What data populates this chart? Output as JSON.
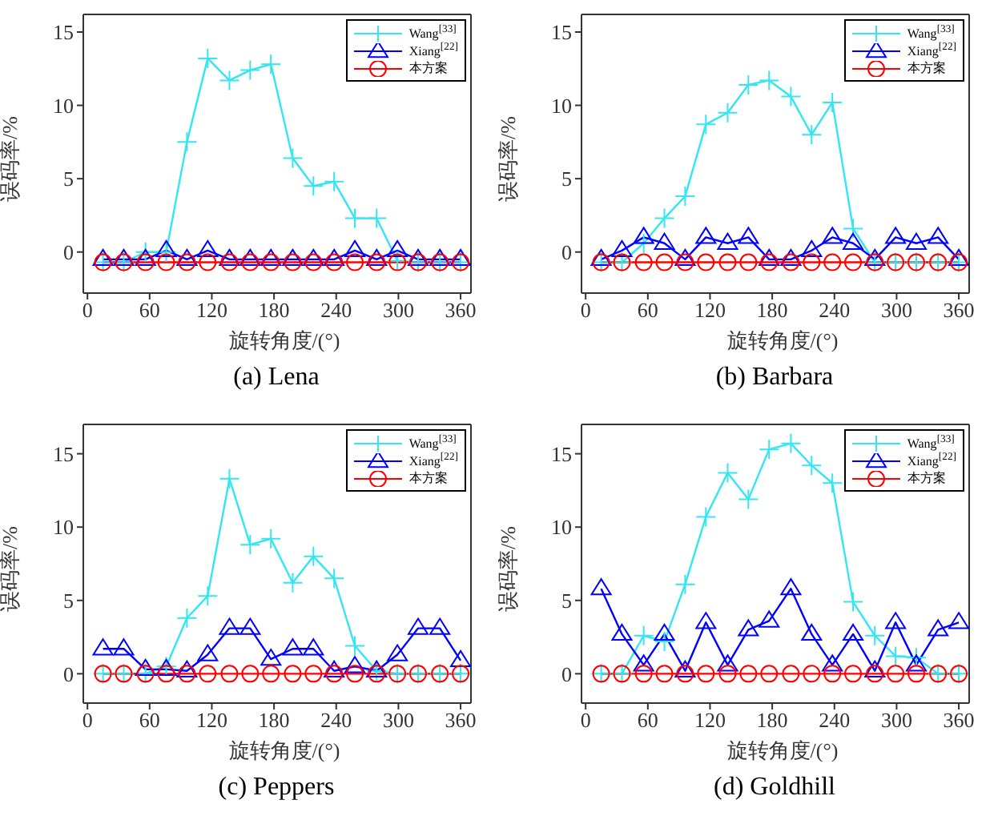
{
  "chart_data": [
    {
      "type": "line",
      "title": "(a) Lena",
      "xlabel": "旋转角度/(°)",
      "ylabel": "误码率/%",
      "x": [
        15,
        35,
        56,
        76,
        96,
        116,
        137,
        157,
        177,
        198,
        218,
        238,
        258,
        279,
        299,
        319,
        340,
        360
      ],
      "xlim": [
        -4,
        370
      ],
      "xticks": [
        0,
        60,
        120,
        180,
        240,
        300,
        360
      ],
      "ylim": [
        -2.8,
        16.2
      ],
      "yticks": [
        0,
        5,
        10,
        15
      ],
      "legend": "top right",
      "series": [
        {
          "name": "Wang$^{[33]}$",
          "color": "#33e6f0",
          "marker": "cross",
          "values": [
            -0.7,
            -0.7,
            0,
            0,
            7.5,
            13.2,
            11.7,
            12.4,
            12.8,
            6.4,
            4.5,
            4.8,
            2.3,
            2.3,
            -0.6,
            -0.7,
            -0.7,
            -0.7
          ]
        },
        {
          "name": "Xiang$^{[22]}$",
          "color": "#0000ff",
          "marker": "triangle",
          "values": [
            -0.5,
            -0.5,
            -0.5,
            0.1,
            -0.5,
            0.1,
            -0.5,
            -0.5,
            -0.5,
            -0.5,
            -0.5,
            -0.5,
            0.1,
            -0.5,
            0.1,
            -0.5,
            -0.5,
            -0.5
          ]
        },
        {
          "name": "本方案",
          "color": "#ff0000",
          "marker": "circle",
          "values": [
            -0.7,
            -0.7,
            -0.7,
            -0.7,
            -0.7,
            -0.7,
            -0.7,
            -0.7,
            -0.7,
            -0.7,
            -0.7,
            -0.7,
            -0.7,
            -0.7,
            -0.7,
            -0.7,
            -0.7,
            -0.7
          ]
        }
      ]
    },
    {
      "type": "line",
      "title": "(b) Barbara",
      "xlabel": "旋转角度/(°)",
      "ylabel": "误码率/%",
      "x": [
        15,
        35,
        56,
        76,
        96,
        116,
        137,
        157,
        177,
        198,
        218,
        238,
        258,
        279,
        299,
        319,
        340,
        360
      ],
      "xlim": [
        -4,
        370
      ],
      "xticks": [
        0,
        60,
        120,
        180,
        240,
        300,
        360
      ],
      "ylim": [
        -2.8,
        16.2
      ],
      "yticks": [
        0,
        5,
        10,
        15
      ],
      "legend": "top right",
      "series": [
        {
          "name": "Wang$^{[33]}$",
          "color": "#33e6f0",
          "marker": "cross",
          "values": [
            -0.7,
            -0.7,
            0.6,
            2.3,
            3.8,
            8.7,
            9.5,
            11.4,
            11.7,
            10.6,
            8,
            10.2,
            1.6,
            -0.7,
            -0.7,
            -0.7,
            -0.7,
            -0.7
          ]
        },
        {
          "name": "Xiang$^{[22]}$",
          "color": "#0000ff",
          "marker": "triangle",
          "values": [
            -0.5,
            0.1,
            1,
            0.6,
            -0.5,
            1,
            0.6,
            1,
            -0.5,
            -0.5,
            0.1,
            1,
            0.6,
            -0.5,
            1,
            0.6,
            1,
            -0.5
          ]
        },
        {
          "name": "本方案",
          "color": "#ff0000",
          "marker": "circle",
          "values": [
            -0.7,
            -0.7,
            -0.7,
            -0.7,
            -0.7,
            -0.7,
            -0.7,
            -0.7,
            -0.7,
            -0.7,
            -0.7,
            -0.7,
            -0.7,
            -0.7,
            -0.7,
            -0.7,
            -0.7,
            -0.7
          ]
        }
      ]
    },
    {
      "type": "line",
      "title": "(c) Peppers",
      "xlabel": "旋转角度/(°)",
      "ylabel": "误码率/%",
      "x": [
        15,
        35,
        56,
        76,
        96,
        116,
        137,
        157,
        177,
        198,
        218,
        238,
        258,
        279,
        299,
        319,
        340,
        360
      ],
      "xlim": [
        -4,
        370
      ],
      "xticks": [
        0,
        60,
        120,
        180,
        240,
        300,
        360
      ],
      "ylim": [
        -2,
        17
      ],
      "yticks": [
        0,
        5,
        10,
        15
      ],
      "legend": "top right",
      "series": [
        {
          "name": "Wang$^{[33]}$",
          "color": "#33e6f0",
          "marker": "cross",
          "values": [
            0,
            0,
            0,
            0.5,
            3.8,
            5.3,
            13.3,
            8.8,
            9.2,
            6.2,
            8,
            6.5,
            1.9,
            0.2,
            0,
            0,
            0,
            0
          ]
        },
        {
          "name": "Xiang$^{[22]}$",
          "color": "#0000ff",
          "marker": "triangle",
          "values": [
            1.7,
            1.7,
            0.3,
            0.3,
            0.2,
            1.3,
            3.1,
            3.1,
            1,
            1.7,
            1.7,
            0.2,
            0.5,
            0.2,
            1.3,
            3.1,
            3.1,
            0.9
          ]
        },
        {
          "name": "本方案",
          "color": "#ff0000",
          "marker": "circle",
          "values": [
            0,
            0,
            0,
            0,
            0,
            0,
            0,
            0,
            0,
            0,
            0,
            0,
            0,
            0,
            0,
            0,
            0,
            0
          ]
        }
      ]
    },
    {
      "type": "line",
      "title": "(d) Goldhill",
      "xlabel": "旋转角度/(°)",
      "ylabel": "误码率/%",
      "x": [
        15,
        35,
        56,
        76,
        96,
        116,
        137,
        157,
        177,
        198,
        218,
        238,
        258,
        279,
        299,
        319,
        340,
        360
      ],
      "xlim": [
        -4,
        370
      ],
      "xticks": [
        0,
        60,
        120,
        180,
        240,
        300,
        360
      ],
      "ylim": [
        -2,
        17
      ],
      "yticks": [
        0,
        5,
        10,
        15
      ],
      "legend": "top right",
      "series": [
        {
          "name": "Wang$^{[33]}$",
          "color": "#33e6f0",
          "marker": "cross",
          "values": [
            0,
            0,
            2.6,
            2.2,
            6.1,
            10.7,
            13.7,
            11.9,
            15.3,
            15.7,
            14.2,
            13,
            4.9,
            2.6,
            1.2,
            1.1,
            0,
            0
          ]
        },
        {
          "name": "Xiang$^{[22]}$",
          "color": "#0000ff",
          "marker": "triangle",
          "values": [
            5.8,
            2.7,
            0.6,
            2.7,
            0.2,
            3.5,
            0.6,
            3,
            3.6,
            5.8,
            2.7,
            0.6,
            2.7,
            0.2,
            3.5,
            0.6,
            3,
            3.5
          ]
        },
        {
          "name": "本方案",
          "color": "#ff0000",
          "marker": "circle",
          "values": [
            0,
            0,
            0,
            0,
            0,
            0,
            0,
            0,
            0,
            0,
            0,
            0,
            0,
            0,
            0,
            0,
            0,
            0
          ]
        }
      ]
    }
  ]
}
